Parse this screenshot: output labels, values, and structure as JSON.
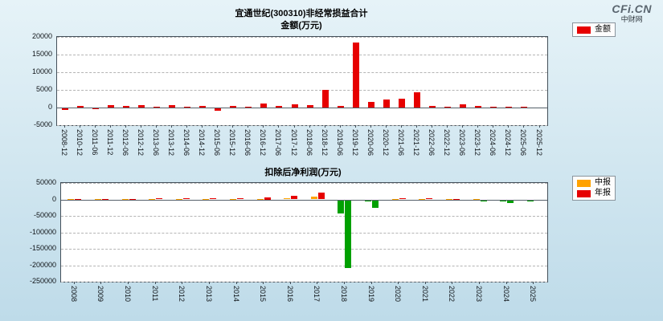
{
  "logo": {
    "brand": "CFi.CN",
    "sub": "中财网"
  },
  "colors": {
    "background_top": "#e6f3f8",
    "background_bottom": "#bedbe9",
    "bar_red": "#e60000",
    "bar_orange": "#ffa200",
    "bar_green_negative": "#00a000",
    "grid": "#b4b4b4"
  },
  "chart_data": [
    {
      "type": "bar",
      "title": "宜通世纪(300310)非经常损益合计",
      "subtitle": "金额(万元)",
      "legend_position": "right",
      "grid": true,
      "ylim": [
        -5000,
        20000
      ],
      "yticks": [
        20000,
        15000,
        10000,
        5000,
        0,
        -5000
      ],
      "categories": [
        "2008-12",
        "2010-12",
        "2011-06",
        "2011-12",
        "2012-06",
        "2012-12",
        "2013-06",
        "2013-12",
        "2014-06",
        "2014-12",
        "2015-06",
        "2015-12",
        "2016-06",
        "2016-12",
        "2017-06",
        "2017-12",
        "2018-06",
        "2018-12",
        "2019-06",
        "2019-12",
        "2020-06",
        "2020-12",
        "2021-06",
        "2021-12",
        "2022-06",
        "2022-12",
        "2023-06",
        "2023-12",
        "2024-06",
        "2024-12",
        "2025-06",
        "2025-12"
      ],
      "series": [
        {
          "name": "金额",
          "color": "#e60000",
          "values": [
            -500,
            400,
            -300,
            800,
            400,
            700,
            300,
            600,
            300,
            500,
            -600,
            400,
            350,
            1100,
            500,
            900,
            800,
            5000,
            400,
            18500,
            1500,
            2200,
            2500,
            4300,
            500,
            300,
            900,
            400,
            250,
            300,
            250,
            0
          ]
        }
      ]
    },
    {
      "type": "bar",
      "title": "扣除后净利润(万元)",
      "legend_position": "right",
      "grid": true,
      "ylim": [
        -250000,
        50000
      ],
      "yticks": [
        50000,
        0,
        -50000,
        -100000,
        -150000,
        -200000,
        -250000
      ],
      "negative_color": "#00a000",
      "categories": [
        "2008",
        "2009",
        "2010",
        "2011",
        "2012",
        "2013",
        "2014",
        "2015",
        "2016",
        "2017",
        "2018",
        "2019",
        "2020",
        "2021",
        "2022",
        "2023",
        "2024",
        "2025"
      ],
      "series": [
        {
          "name": "中报",
          "color": "#ffa200",
          "values": [
            300,
            400,
            800,
            1200,
            1500,
            1800,
            2000,
            2500,
            4000,
            8000,
            -40000,
            -3000,
            1500,
            2000,
            800,
            500,
            -2000,
            -800
          ]
        },
        {
          "name": "年报",
          "color": "#e60000",
          "values": [
            800,
            1000,
            2000,
            2800,
            3200,
            3800,
            4500,
            6000,
            12000,
            20000,
            -205000,
            -22000,
            3000,
            4000,
            1500,
            -1000,
            -9000,
            0
          ]
        }
      ]
    }
  ]
}
